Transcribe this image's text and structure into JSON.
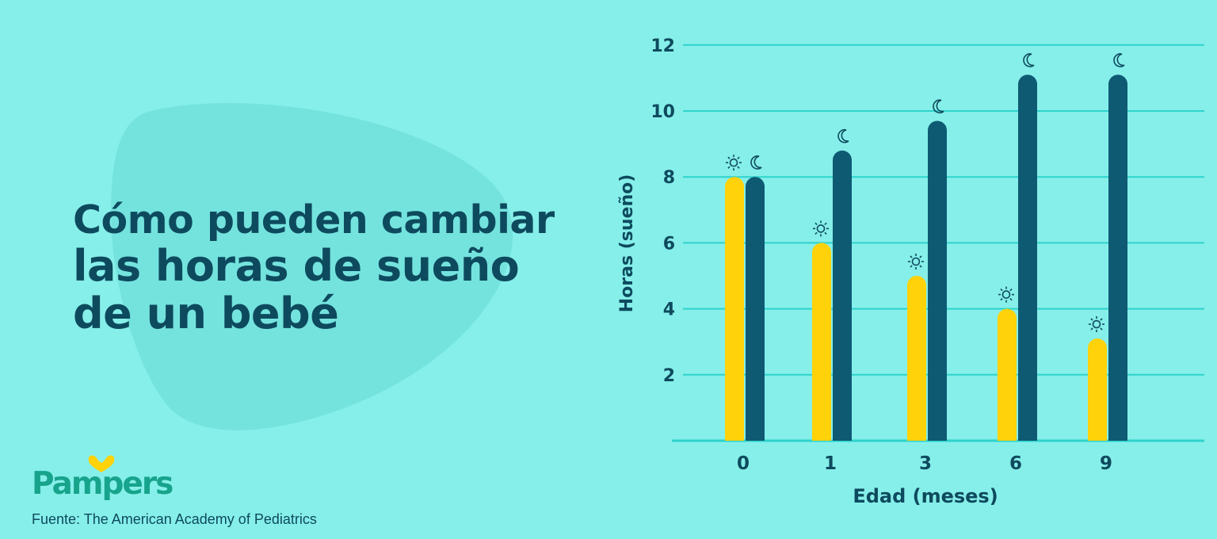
{
  "title": {
    "line1": "Cómo pueden cambiar",
    "line2": "las horas de sueño",
    "line3": "de un bebé"
  },
  "brand": {
    "name": "Pampers",
    "color": "#17A38C"
  },
  "source": "Fuente: The American Academy of Pediatrics",
  "colors": {
    "background": "#86EFE9",
    "blob": "#74E3DE",
    "day": "#FFD20A",
    "night": "#0E5A73",
    "text": "#0E4A5E",
    "grid": "#2ED3CC"
  },
  "chart_data": {
    "type": "bar",
    "categories": [
      "0",
      "1",
      "3",
      "6",
      "9"
    ],
    "series": [
      {
        "icon": "sun-icon",
        "values": [
          8,
          6,
          5,
          4,
          3.1
        ]
      },
      {
        "icon": "moon-icon",
        "values": [
          8,
          8.8,
          9.7,
          11.1,
          11.1
        ]
      }
    ],
    "xlabel": "Edad (meses)",
    "ylabel": "Horas (sueño)",
    "yticks": [
      "2",
      "4",
      "6",
      "8",
      "10",
      "12"
    ],
    "ylim": [
      0,
      12
    ],
    "grid": true
  }
}
